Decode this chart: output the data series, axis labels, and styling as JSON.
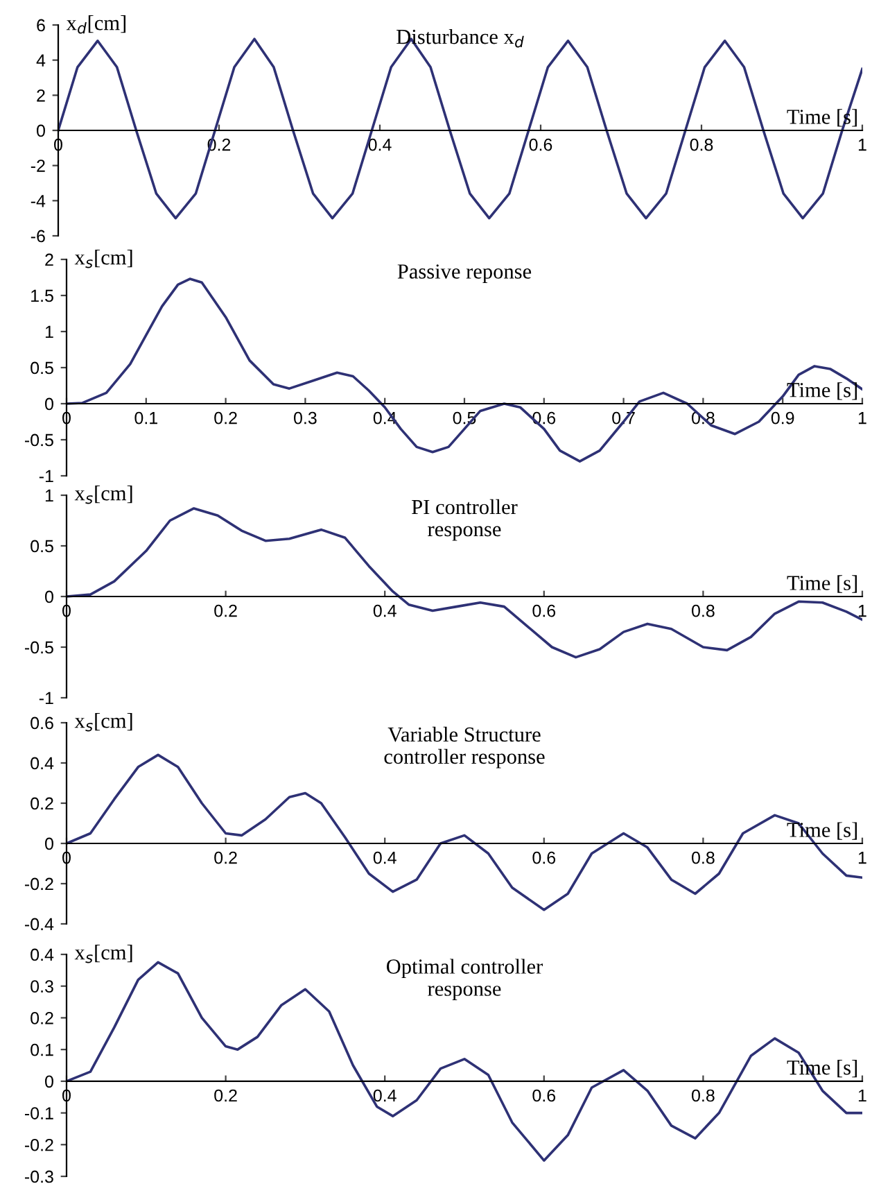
{
  "chart_data": [
    {
      "type": "line",
      "title": "Disturbance x$_{d}$",
      "ylabel": "x$_{d}$[cm]",
      "xlabel": "Time [s]",
      "xlim": [
        0,
        1
      ],
      "ylim": [
        -6,
        6
      ],
      "xticks": [
        0,
        0.2,
        0.4,
        0.6,
        0.8,
        1
      ],
      "yticks": [
        -6,
        -4,
        -2,
        0,
        2,
        4,
        6
      ],
      "x": [
        0,
        0.024,
        0.049,
        0.073,
        0.097,
        0.122,
        0.146,
        0.171,
        0.195,
        0.219,
        0.244,
        0.268,
        0.292,
        0.317,
        0.341,
        0.366,
        0.39,
        0.414,
        0.439,
        0.463,
        0.487,
        0.512,
        0.536,
        0.561,
        0.585,
        0.609,
        0.634,
        0.658,
        0.682,
        0.707,
        0.731,
        0.756,
        0.78,
        0.804,
        0.829,
        0.853,
        0.877,
        0.902,
        0.926,
        0.951,
        0.975,
        1.0
      ],
      "series": [
        {
          "color": "#2e3175",
          "values": [
            0,
            3.6,
            5.1,
            3.6,
            0,
            -3.6,
            -5.0,
            -3.6,
            0,
            3.6,
            5.2,
            3.6,
            0,
            -3.6,
            -5.0,
            -3.6,
            0,
            3.6,
            5.2,
            3.6,
            0,
            -3.6,
            -5.0,
            -3.6,
            0,
            3.6,
            5.1,
            3.6,
            0,
            -3.6,
            -5.0,
            -3.6,
            0,
            3.6,
            5.1,
            3.6,
            0,
            -3.6,
            -5.0,
            -3.6,
            0,
            3.5
          ]
        }
      ]
    },
    {
      "type": "line",
      "title": "Passive reponse",
      "ylabel": "x$_{s}$[cm]",
      "xlabel": "Time [s]",
      "xlim": [
        0,
        1
      ],
      "ylim": [
        -1,
        2
      ],
      "xticks": [
        0,
        0.1,
        0.2,
        0.3,
        0.4,
        0.5,
        0.6,
        0.7,
        0.8,
        0.9,
        1
      ],
      "yticks": [
        -1,
        -0.5,
        0,
        0.5,
        1,
        1.5,
        2
      ],
      "x": [
        0,
        0.02,
        0.05,
        0.08,
        0.1,
        0.12,
        0.14,
        0.155,
        0.17,
        0.2,
        0.23,
        0.26,
        0.28,
        0.31,
        0.34,
        0.36,
        0.38,
        0.4,
        0.42,
        0.44,
        0.46,
        0.48,
        0.5,
        0.52,
        0.55,
        0.57,
        0.6,
        0.62,
        0.645,
        0.67,
        0.7,
        0.72,
        0.75,
        0.78,
        0.81,
        0.84,
        0.87,
        0.9,
        0.92,
        0.94,
        0.96,
        0.98,
        1.0
      ],
      "series": [
        {
          "color": "#2e3175",
          "values": [
            0,
            0.01,
            0.15,
            0.55,
            0.95,
            1.35,
            1.65,
            1.73,
            1.68,
            1.2,
            0.6,
            0.27,
            0.21,
            0.32,
            0.43,
            0.38,
            0.18,
            -0.05,
            -0.35,
            -0.6,
            -0.67,
            -0.6,
            -0.35,
            -0.1,
            0.0,
            -0.05,
            -0.35,
            -0.65,
            -0.8,
            -0.65,
            -0.25,
            0.03,
            0.15,
            0.0,
            -0.3,
            -0.42,
            -0.25,
            0.1,
            0.4,
            0.52,
            0.48,
            0.35,
            0.2
          ]
        }
      ]
    },
    {
      "type": "line",
      "title": "PI controller\nresponse",
      "ylabel": "x$_{s}$[cm]",
      "xlabel": "Time [s]",
      "xlim": [
        0,
        1
      ],
      "ylim": [
        -1,
        1
      ],
      "xticks": [
        0,
        0.2,
        0.4,
        0.6,
        0.8,
        1
      ],
      "yticks": [
        -1,
        -0.5,
        0,
        0.5,
        1
      ],
      "x": [
        0,
        0.03,
        0.06,
        0.1,
        0.13,
        0.16,
        0.19,
        0.22,
        0.25,
        0.28,
        0.32,
        0.35,
        0.38,
        0.41,
        0.43,
        0.46,
        0.49,
        0.52,
        0.55,
        0.58,
        0.61,
        0.64,
        0.67,
        0.7,
        0.73,
        0.76,
        0.8,
        0.83,
        0.86,
        0.89,
        0.92,
        0.95,
        0.98,
        1.0
      ],
      "series": [
        {
          "color": "#2e3175",
          "values": [
            0,
            0.02,
            0.15,
            0.45,
            0.75,
            0.87,
            0.8,
            0.65,
            0.55,
            0.57,
            0.66,
            0.58,
            0.3,
            0.05,
            -0.08,
            -0.14,
            -0.1,
            -0.06,
            -0.1,
            -0.3,
            -0.5,
            -0.6,
            -0.52,
            -0.35,
            -0.27,
            -0.32,
            -0.5,
            -0.53,
            -0.4,
            -0.17,
            -0.05,
            -0.06,
            -0.15,
            -0.23
          ]
        }
      ]
    },
    {
      "type": "line",
      "title": "Variable Structure\ncontroller response",
      "ylabel": "x$_{s}$[cm]",
      "xlabel": "Time [s]",
      "xlim": [
        0,
        1
      ],
      "ylim": [
        -0.4,
        0.6
      ],
      "xticks": [
        0,
        0.2,
        0.4,
        0.6,
        0.8,
        1
      ],
      "yticks": [
        -0.4,
        -0.2,
        0,
        0.2,
        0.4,
        0.6
      ],
      "x": [
        0,
        0.03,
        0.06,
        0.09,
        0.115,
        0.14,
        0.17,
        0.2,
        0.22,
        0.25,
        0.28,
        0.3,
        0.32,
        0.35,
        0.38,
        0.41,
        0.44,
        0.47,
        0.5,
        0.53,
        0.56,
        0.6,
        0.63,
        0.66,
        0.7,
        0.73,
        0.76,
        0.79,
        0.82,
        0.85,
        0.89,
        0.92,
        0.95,
        0.98,
        1.0
      ],
      "series": [
        {
          "color": "#2e3175",
          "values": [
            0,
            0.05,
            0.22,
            0.38,
            0.44,
            0.38,
            0.2,
            0.05,
            0.04,
            0.12,
            0.23,
            0.25,
            0.2,
            0.03,
            -0.15,
            -0.24,
            -0.18,
            0.0,
            0.04,
            -0.05,
            -0.22,
            -0.33,
            -0.25,
            -0.05,
            0.05,
            -0.02,
            -0.18,
            -0.25,
            -0.15,
            0.05,
            0.14,
            0.1,
            -0.05,
            -0.16,
            -0.17
          ]
        }
      ]
    },
    {
      "type": "line",
      "title": "Optimal controller\nresponse",
      "ylabel": "x$_{s}$[cm]",
      "xlabel": "Time [s]",
      "xlim": [
        0,
        1
      ],
      "ylim": [
        -0.3,
        0.4
      ],
      "xticks": [
        0,
        0.2,
        0.4,
        0.6,
        0.8,
        1
      ],
      "yticks": [
        -0.3,
        -0.2,
        -0.1,
        0,
        0.1,
        0.2,
        0.3,
        0.4
      ],
      "x": [
        0,
        0.03,
        0.06,
        0.09,
        0.115,
        0.14,
        0.17,
        0.2,
        0.215,
        0.24,
        0.27,
        0.3,
        0.33,
        0.36,
        0.39,
        0.41,
        0.44,
        0.47,
        0.5,
        0.53,
        0.56,
        0.6,
        0.63,
        0.66,
        0.7,
        0.73,
        0.76,
        0.79,
        0.82,
        0.86,
        0.89,
        0.92,
        0.95,
        0.98,
        1.0
      ],
      "series": [
        {
          "color": "#2e3175",
          "values": [
            0,
            0.03,
            0.17,
            0.32,
            0.375,
            0.34,
            0.2,
            0.11,
            0.1,
            0.14,
            0.24,
            0.29,
            0.22,
            0.05,
            -0.08,
            -0.11,
            -0.06,
            0.04,
            0.07,
            0.02,
            -0.13,
            -0.25,
            -0.17,
            -0.02,
            0.035,
            -0.03,
            -0.14,
            -0.18,
            -0.1,
            0.08,
            0.135,
            0.09,
            -0.03,
            -0.1,
            -0.1
          ]
        }
      ]
    }
  ]
}
